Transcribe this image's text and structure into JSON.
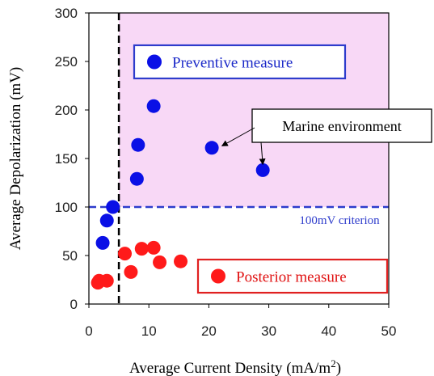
{
  "chart_data": {
    "type": "scatter",
    "xlabel": "Average Current Density (mA/m",
    "xlabel_superscript": "2",
    "xlabel_suffix": ")",
    "ylabel": "Average Depolarization (mV)",
    "xlim": [
      0,
      50
    ],
    "ylim": [
      0,
      300
    ],
    "x_ticks": [
      0,
      10,
      20,
      30,
      40,
      50
    ],
    "y_ticks": [
      0,
      50,
      100,
      150,
      200,
      250,
      300
    ],
    "grid": false,
    "criterion": {
      "y": 100,
      "label": "100mV criterion",
      "color": "#2e3ccc"
    },
    "divider": {
      "x": 5
    },
    "shaded_region": {
      "x_from": 5,
      "x_to": 50,
      "y_from": 100,
      "y_to": 300,
      "color": "#f8d8f6"
    },
    "series": [
      {
        "name": "Preventive measure",
        "color": "#0a10e6",
        "legend_border": "#2e3ccc",
        "legend_text_color": "#1a28c8",
        "points": [
          [
            2.3,
            63
          ],
          [
            3.0,
            86
          ],
          [
            4.0,
            100
          ],
          [
            8.0,
            129
          ],
          [
            8.2,
            164
          ],
          [
            10.8,
            204
          ],
          [
            20.5,
            161
          ],
          [
            29.0,
            138
          ]
        ]
      },
      {
        "name": "Posterior measure",
        "color": "#ff1a1a",
        "legend_border": "#e02020",
        "legend_text_color": "#e01010",
        "points": [
          [
            1.5,
            22
          ],
          [
            1.7,
            24
          ],
          [
            3.0,
            24
          ],
          [
            6.0,
            52
          ],
          [
            7.0,
            33
          ],
          [
            8.8,
            57
          ],
          [
            10.8,
            58
          ],
          [
            11.8,
            43
          ],
          [
            15.3,
            44
          ]
        ]
      }
    ],
    "annotations": [
      {
        "text": "Marine environment",
        "targets": [
          [
            22.2,
            163
          ],
          [
            29.0,
            144
          ]
        ]
      }
    ]
  }
}
